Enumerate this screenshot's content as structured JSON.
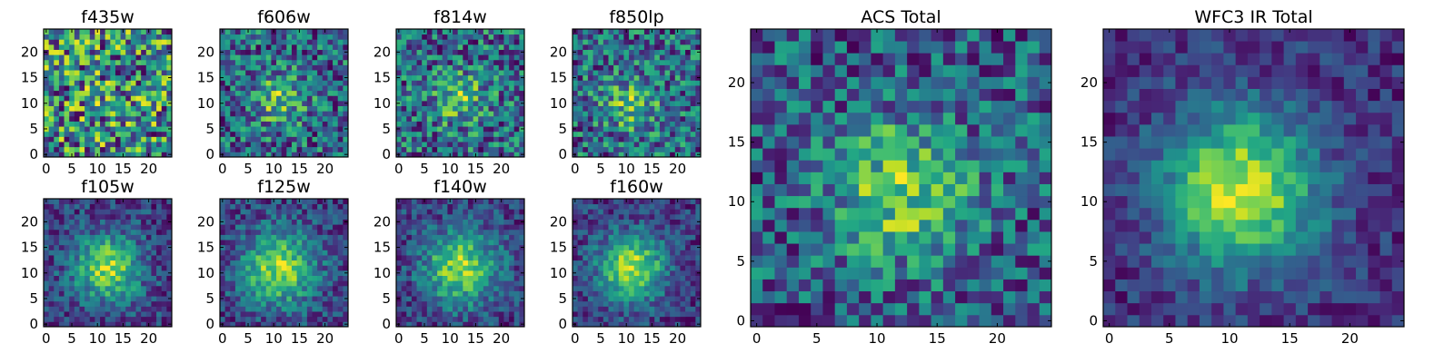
{
  "figure": {
    "background": "#ffffff",
    "colormap": "viridis"
  },
  "chart_data": [
    {
      "type": "heatmap",
      "title": "f435w",
      "grid": [
        25,
        25
      ],
      "xticks": [
        0,
        5,
        10,
        15,
        20
      ],
      "yticks": [
        0,
        5,
        10,
        15,
        20
      ],
      "seed": 11,
      "blob": {
        "cx": 12,
        "cy": 11,
        "strength": 0.05,
        "sigma": 3.5
      },
      "noise": 1.0
    },
    {
      "type": "heatmap",
      "title": "f606w",
      "grid": [
        25,
        25
      ],
      "xticks": [
        0,
        5,
        10,
        15,
        20
      ],
      "yticks": [
        0,
        5,
        10,
        15,
        20
      ],
      "seed": 23,
      "blob": {
        "cx": 11,
        "cy": 11,
        "strength": 0.45,
        "sigma": 3.5
      },
      "noise": 0.85
    },
    {
      "type": "heatmap",
      "title": "f814w",
      "grid": [
        25,
        25
      ],
      "xticks": [
        0,
        5,
        10,
        15,
        20
      ],
      "yticks": [
        0,
        5,
        10,
        15,
        20
      ],
      "seed": 37,
      "blob": {
        "cx": 12,
        "cy": 11,
        "strength": 0.4,
        "sigma": 3.5
      },
      "noise": 0.85
    },
    {
      "type": "heatmap",
      "title": "f850lp",
      "grid": [
        25,
        25
      ],
      "xticks": [
        0,
        5,
        10,
        15,
        20
      ],
      "yticks": [
        0,
        5,
        10,
        15,
        20
      ],
      "seed": 41,
      "blob": {
        "cx": 11,
        "cy": 10,
        "strength": 0.4,
        "sigma": 3.8
      },
      "noise": 0.85
    },
    {
      "type": "heatmap",
      "title": "f105w",
      "grid": [
        25,
        25
      ],
      "xticks": [
        0,
        5,
        10,
        15,
        20
      ],
      "yticks": [
        0,
        5,
        10,
        15,
        20
      ],
      "seed": 53,
      "blob": {
        "cx": 12,
        "cy": 11,
        "strength": 0.7,
        "sigma": 4.5
      },
      "noise": 0.45
    },
    {
      "type": "heatmap",
      "title": "f125w",
      "grid": [
        25,
        25
      ],
      "xticks": [
        0,
        5,
        10,
        15,
        20
      ],
      "yticks": [
        0,
        5,
        10,
        15,
        20
      ],
      "seed": 67,
      "blob": {
        "cx": 11,
        "cy": 11,
        "strength": 0.7,
        "sigma": 5.0
      },
      "noise": 0.45
    },
    {
      "type": "heatmap",
      "title": "f140w",
      "grid": [
        25,
        25
      ],
      "xticks": [
        0,
        5,
        10,
        15,
        20
      ],
      "yticks": [
        0,
        5,
        10,
        15,
        20
      ],
      "seed": 79,
      "blob": {
        "cx": 12,
        "cy": 11,
        "strength": 0.7,
        "sigma": 5.0
      },
      "noise": 0.45
    },
    {
      "type": "heatmap",
      "title": "f160w",
      "grid": [
        25,
        25
      ],
      "xticks": [
        0,
        5,
        10,
        15,
        20
      ],
      "yticks": [
        0,
        5,
        10,
        15,
        20
      ],
      "seed": 83,
      "blob": {
        "cx": 11,
        "cy": 11,
        "strength": 0.75,
        "sigma": 4.5
      },
      "noise": 0.4
    },
    {
      "type": "heatmap",
      "title": "ACS Total",
      "grid": [
        25,
        25
      ],
      "xticks": [
        0,
        5,
        10,
        15,
        20
      ],
      "yticks": [
        0,
        5,
        10,
        15,
        20
      ],
      "seed": 97,
      "blob": {
        "cx": 12,
        "cy": 11,
        "strength": 0.55,
        "sigma": 4.0
      },
      "noise": 0.7
    },
    {
      "type": "heatmap",
      "title": "WFC3 IR Total",
      "grid": [
        25,
        25
      ],
      "xticks": [
        0,
        5,
        10,
        15,
        20
      ],
      "yticks": [
        0,
        5,
        10,
        15,
        20
      ],
      "seed": 101,
      "blob": {
        "cx": 11,
        "cy": 11,
        "strength": 0.9,
        "sigma": 4.5
      },
      "noise": 0.35
    }
  ]
}
